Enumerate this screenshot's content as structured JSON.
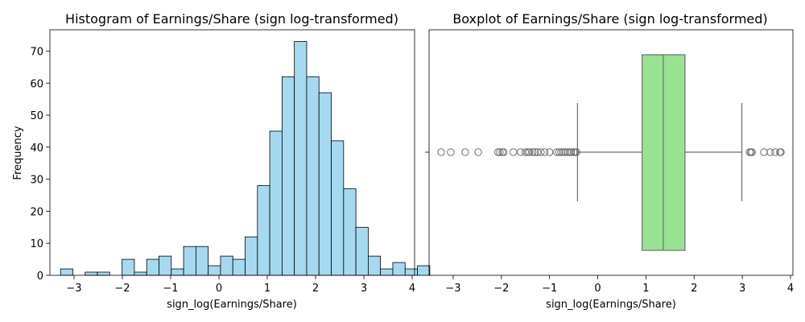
{
  "chart_data": [
    {
      "type": "bar",
      "title": "Histogram of Earnings/Share (sign log-transformed)",
      "xlabel": "sign_log(Earnings/Share)",
      "ylabel": "Frequency",
      "xlim": [
        -3.5,
        4.05
      ],
      "ylim": [
        0,
        76.65
      ],
      "xticks": [
        "−3",
        "−2",
        "−1",
        "0",
        "1",
        "2",
        "3",
        "4"
      ],
      "yticks": [
        "0",
        "10",
        "20",
        "30",
        "40",
        "50",
        "60",
        "70"
      ],
      "bin_start": -3.28,
      "bin_width": 0.2548,
      "values": [
        2,
        0,
        1,
        1,
        0,
        5,
        1,
        5,
        6,
        2,
        9,
        9,
        3,
        6,
        5,
        12,
        28,
        45,
        62,
        73,
        62,
        57,
        42,
        27,
        15,
        6,
        2,
        4,
        2,
        3
      ]
    },
    {
      "type": "boxplot",
      "title": "Boxplot of Earnings/Share (sign log-transformed)",
      "xlabel": "sign_log(Earnings/Share)",
      "xlim": [
        -3.5,
        4.05
      ],
      "xticks": [
        "−3",
        "−2",
        "−1",
        "0",
        "1",
        "2",
        "3",
        "4"
      ],
      "whisker_low": -0.42,
      "q1": 0.92,
      "median": 1.36,
      "q3": 1.81,
      "whisker_high": 2.99,
      "outliers": [
        -3.25,
        -3.05,
        -2.75,
        -2.48,
        -2.07,
        -2.03,
        -1.98,
        -1.95,
        -1.75,
        -1.6,
        -1.5,
        -1.45,
        -1.42,
        -1.35,
        -1.3,
        -1.25,
        -1.18,
        -1.1,
        -1.0,
        -0.85,
        -0.8,
        -0.76,
        -0.72,
        -0.68,
        -0.63,
        -0.58,
        -0.55,
        -0.5,
        -0.47,
        -0.44,
        3.15,
        3.18,
        3.2,
        3.45,
        3.58,
        3.68,
        3.78,
        3.8
      ]
    }
  ]
}
